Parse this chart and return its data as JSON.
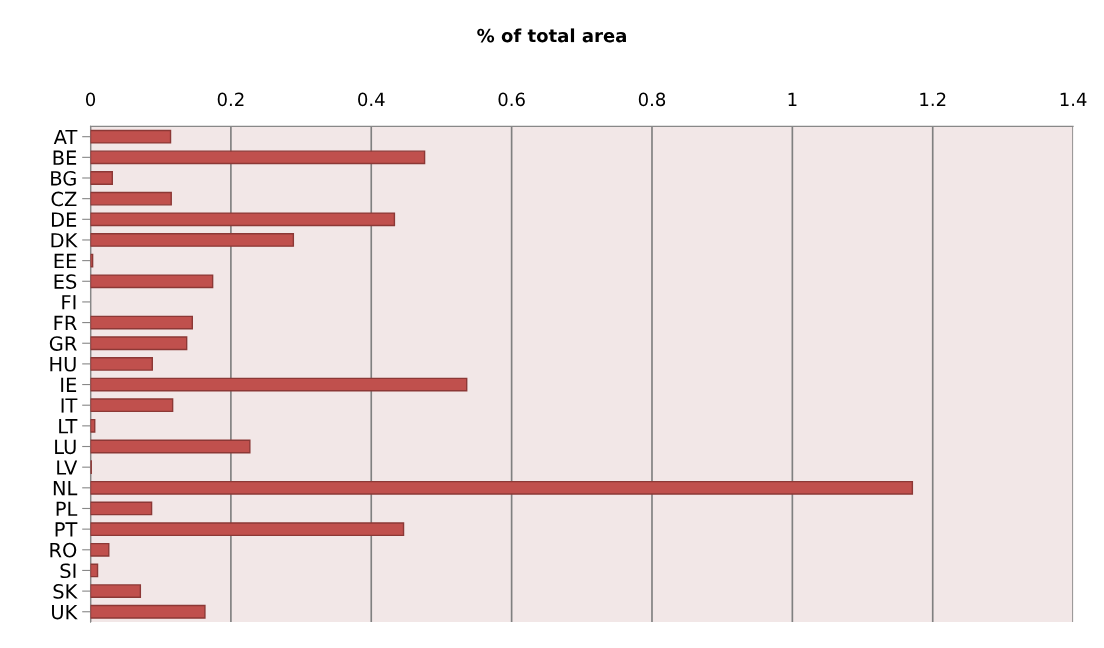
{
  "chart_data": {
    "type": "bar",
    "orientation": "horizontal",
    "title": "% of total area",
    "categories": [
      "AT",
      "BE",
      "BG",
      "CZ",
      "DE",
      "DK",
      "EE",
      "ES",
      "FI",
      "FR",
      "GR",
      "HU",
      "IE",
      "IT",
      "LT",
      "LU",
      "LV",
      "NL",
      "PL",
      "PT",
      "RO",
      "SI",
      "SK",
      "UK"
    ],
    "values": [
      0.114,
      0.476,
      0.031,
      0.115,
      0.433,
      0.289,
      0.003,
      0.174,
      0,
      0.145,
      0.137,
      0.088,
      0.536,
      0.117,
      0.006,
      0.227,
      0.001,
      1.171,
      0.087,
      0.446,
      0.026,
      0.01,
      0.071,
      0.163
    ],
    "color": "#c0504d",
    "xlim": [
      0,
      1.4
    ],
    "xticks": [
      0,
      0.2,
      0.4,
      0.6,
      0.8,
      1,
      1.2,
      1.4
    ],
    "grid": "x"
  }
}
